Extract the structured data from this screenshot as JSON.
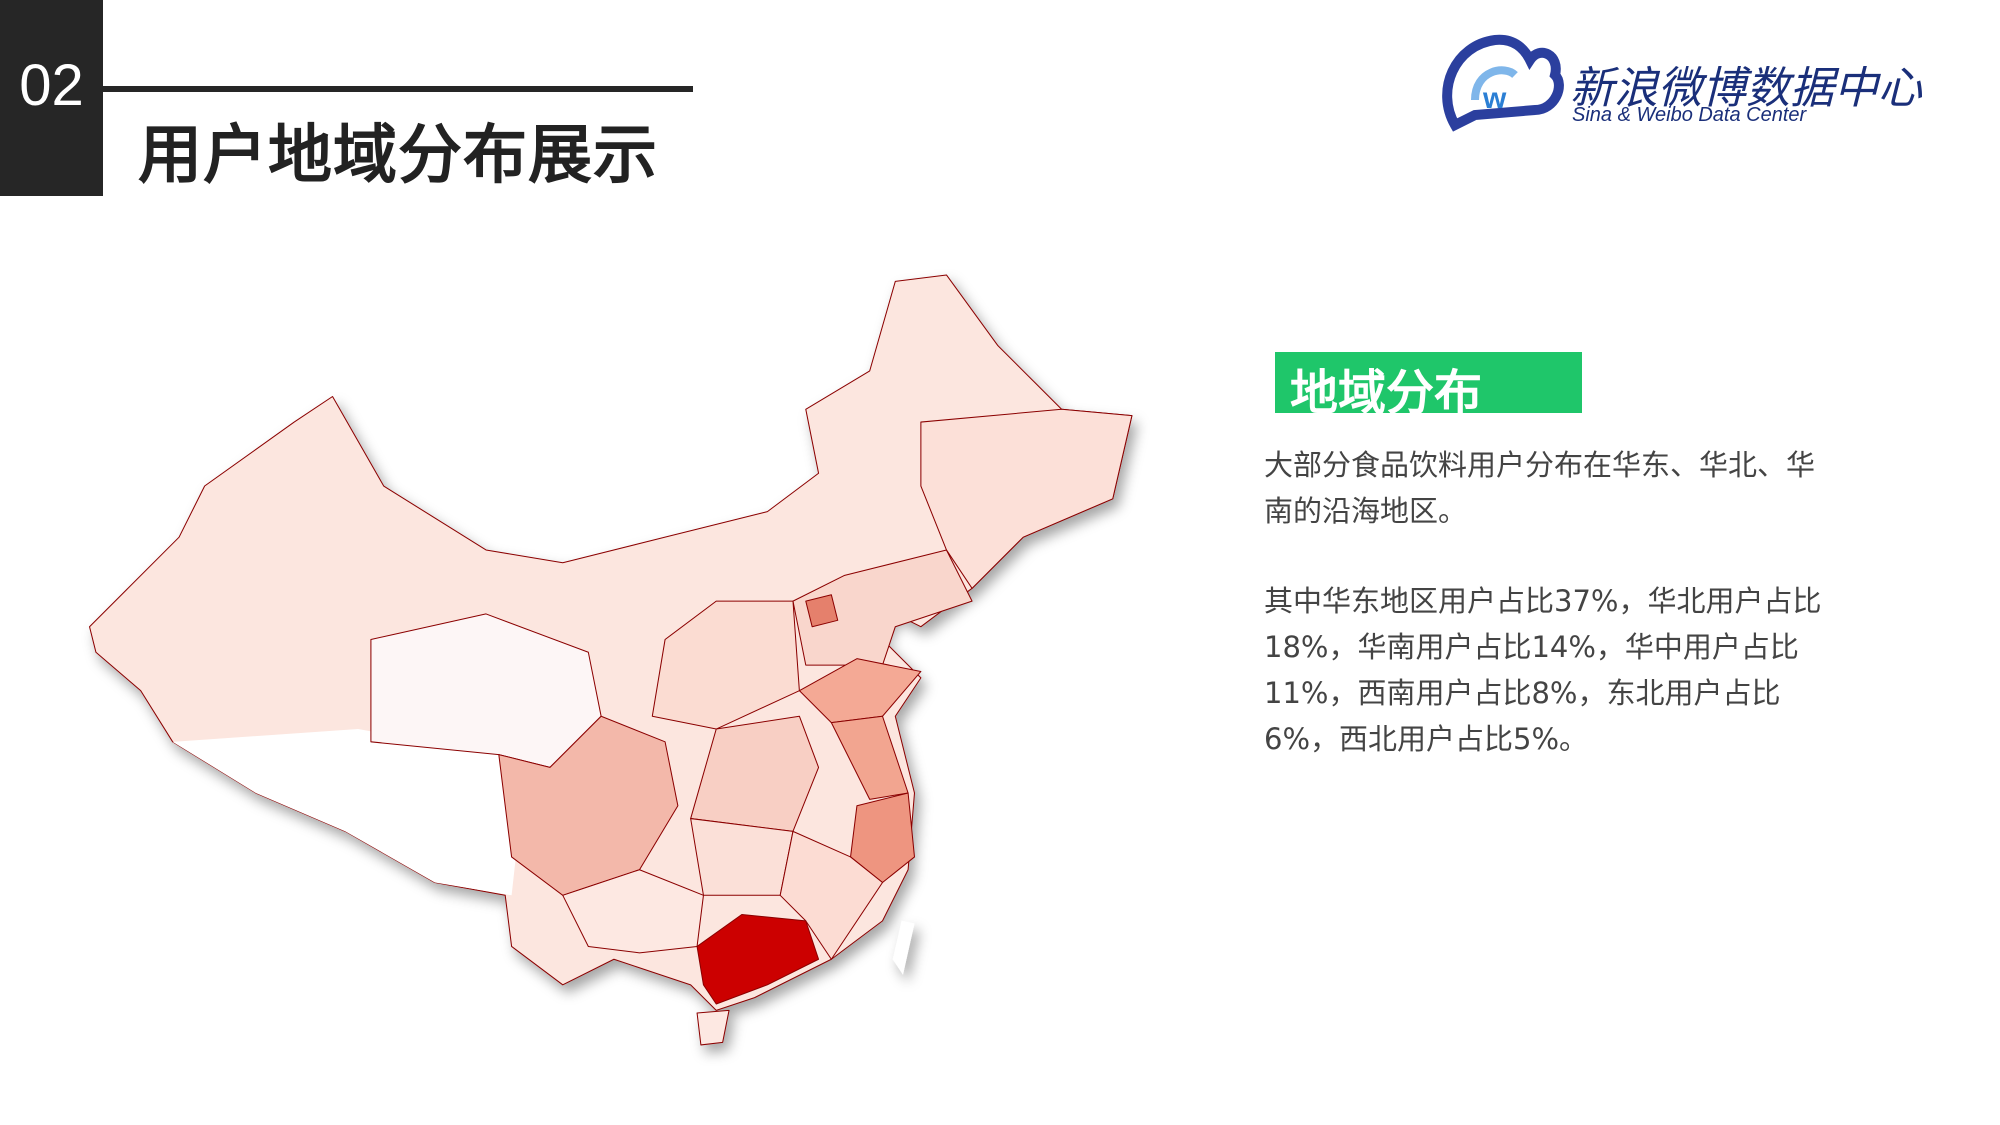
{
  "header": {
    "number": "02",
    "title": "用户地域分布展示"
  },
  "logo": {
    "name": "新浪微博数据中心",
    "subtitle": "Sina & Weibo Data Center"
  },
  "section": {
    "title": "地域分布",
    "paragraphs": [
      "大部分食品饮料用户分布在华东、华北、华南的沿海地区。",
      "其中华东地区用户占比37%，华北用户占比18%，华南用户占比14%，华中用户占比11%，西南用户占比8%，东北用户占比6%，西北用户占比5%。"
    ]
  }
}
